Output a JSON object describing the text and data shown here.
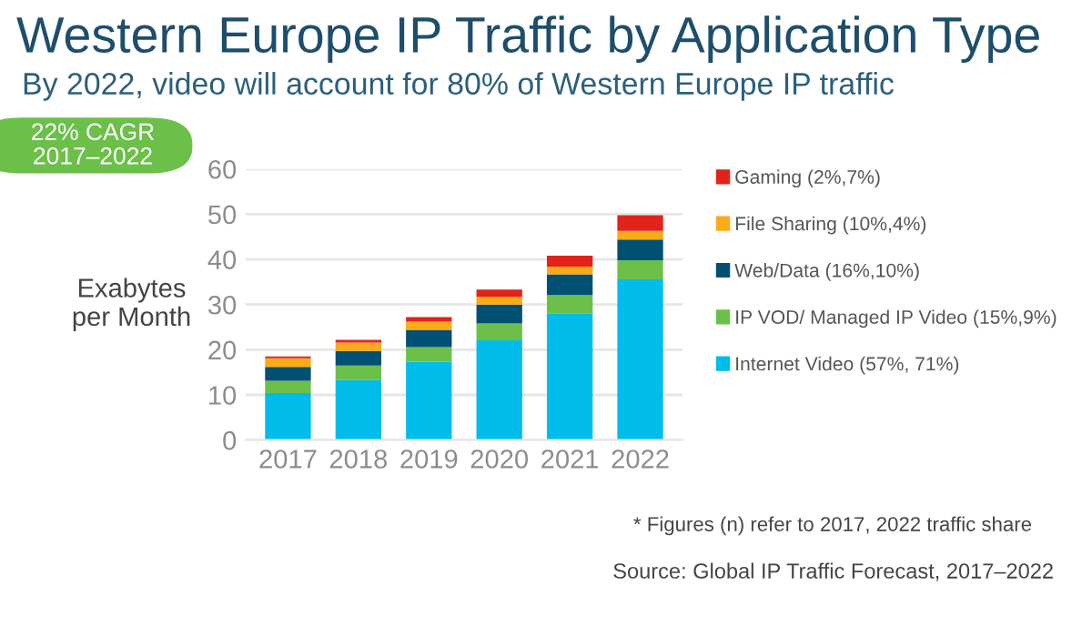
{
  "chart_data": {
    "type": "bar",
    "title": "Western Europe IP Traffic by Application Type",
    "subtitle": "By 2022, video will account for 80% of Western Europe IP traffic",
    "ylabel": "Exabytes\nper Month",
    "categories": [
      "2017",
      "2018",
      "2019",
      "2020",
      "2021",
      "2022"
    ],
    "stacked": true,
    "series": [
      {
        "name": "Internet Video (57%, 71%)",
        "color": "#00bceb",
        "values": [
          10.4,
          13.3,
          17.3,
          22.1,
          28.1,
          35.6
        ]
      },
      {
        "name": "IP VOD/ Managed IP Video (15%,9%)",
        "color": "#6cc04a",
        "values": [
          2.7,
          3.2,
          3.3,
          3.7,
          4.0,
          4.2
        ]
      },
      {
        "name": "Web/Data (16%,10%)",
        "color": "#005073",
        "values": [
          3.1,
          3.2,
          3.8,
          4.2,
          4.6,
          4.6
        ]
      },
      {
        "name": "File Sharing (10%,4%)",
        "color": "#fbab18",
        "values": [
          1.9,
          1.9,
          1.8,
          1.7,
          1.7,
          1.9
        ]
      },
      {
        "name": "Gaming (2%,7%)",
        "color": "#e2231a",
        "values": [
          0.4,
          0.6,
          1.0,
          1.6,
          2.4,
          3.5
        ]
      }
    ],
    "ylim": [
      0,
      60
    ],
    "yticks": [
      0,
      10,
      20,
      30,
      40,
      50,
      60
    ],
    "grid": "y",
    "legend": "right",
    "annotations": [
      "22% CAGR\n2017–2022",
      "* Figures (n) refer to 2017, 2022 traffic share",
      "Source: Global IP Traffic Forecast, 2017–2022"
    ]
  }
}
